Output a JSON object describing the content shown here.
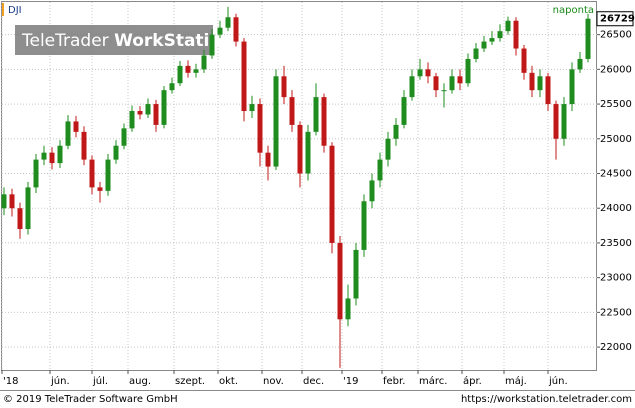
{
  "chart_data": {
    "type": "candlestick",
    "title": "DJI",
    "subtitle": "naponta",
    "watermark": [
      "TeleTrader",
      "WorkStation"
    ],
    "footer_left": "© 2019 TeleTrader Software GmbH",
    "footer_right": "https://workstation.teletrader.com",
    "up_color": "#1e8c1e",
    "down_color": "#c01818",
    "grid": true,
    "xlim": [
      0,
      297.5
    ],
    "ylim": [
      21670,
      26970
    ],
    "yticks": [
      22000,
      22500,
      23000,
      23500,
      24000,
      24500,
      25000,
      25500,
      26000,
      26500
    ],
    "xticks": [
      {
        "value": 0,
        "label": "'18"
      },
      {
        "value": 24,
        "label": "jún."
      },
      {
        "value": 45,
        "label": "júl."
      },
      {
        "value": 63,
        "label": "aug."
      },
      {
        "value": 86,
        "label": "szept."
      },
      {
        "value": 108,
        "label": "okt."
      },
      {
        "value": 130,
        "label": "nov."
      },
      {
        "value": 150,
        "label": "dec."
      },
      {
        "value": 170,
        "label": "'19"
      },
      {
        "value": 190,
        "label": "febr."
      },
      {
        "value": 208,
        "label": "márc."
      },
      {
        "value": 230,
        "label": "ápr."
      },
      {
        "value": 251,
        "label": "máj."
      },
      {
        "value": 273,
        "label": "jún."
      }
    ],
    "x": [
      1,
      5,
      9,
      13,
      17,
      21,
      25,
      29,
      33,
      37,
      41,
      45,
      49,
      53,
      57,
      61,
      65,
      69,
      73,
      77,
      81,
      85,
      89,
      93,
      97,
      101,
      105,
      109,
      113,
      117,
      121,
      125,
      129,
      133,
      137,
      141,
      145,
      149,
      153,
      157,
      161,
      165,
      169,
      173,
      177,
      181,
      185,
      189,
      193,
      197,
      201,
      205,
      209,
      213,
      217,
      221,
      225,
      229,
      233,
      237,
      241,
      245,
      249,
      253,
      257,
      261,
      265,
      269,
      273,
      277,
      281,
      285,
      289,
      293
    ],
    "open": [
      24000,
      24200,
      24000,
      23700,
      24300,
      24700,
      24800,
      24650,
      24900,
      25250,
      25100,
      24700,
      24300,
      24250,
      24700,
      24900,
      25150,
      25400,
      25350,
      25500,
      25200,
      25700,
      25800,
      26050,
      25950,
      26000,
      26200,
      26500,
      26600,
      26750,
      26400,
      25400,
      25500,
      24800,
      24600,
      25900,
      25600,
      25200,
      24500,
      25100,
      25600,
      24900,
      23500,
      22400,
      22700,
      23400,
      24100,
      24400,
      24700,
      25000,
      25200,
      25600,
      25900,
      26000,
      25900,
      25700,
      25700,
      25900,
      25800,
      26150,
      26300,
      26400,
      26450,
      26550,
      26700,
      26300,
      25950,
      25700,
      25900,
      25500,
      25000,
      25500,
      26000,
      26150
    ],
    "high": [
      24300,
      24280,
      24080,
      24380,
      24780,
      24900,
      24880,
      24980,
      25340,
      25330,
      25180,
      24760,
      24380,
      24780,
      24980,
      25220,
      25480,
      25470,
      25580,
      25560,
      25760,
      25880,
      26120,
      26130,
      26080,
      26280,
      26580,
      26700,
      26900,
      26800,
      26450,
      25620,
      25580,
      24900,
      26000,
      26050,
      25700,
      25250,
      25200,
      25800,
      25650,
      24950,
      23600,
      22900,
      23500,
      24200,
      24500,
      24800,
      25100,
      25300,
      25700,
      26000,
      26150,
      26100,
      25950,
      25800,
      26000,
      26000,
      26230,
      26380,
      26480,
      26550,
      26650,
      26760,
      26750,
      26350,
      26050,
      26000,
      25950,
      25550,
      25600,
      26100,
      26250,
      26800
    ],
    "low": [
      23900,
      23880,
      23560,
      23620,
      24220,
      24620,
      24560,
      24580,
      24850,
      25020,
      24620,
      24200,
      24080,
      24180,
      24640,
      24850,
      25100,
      25280,
      25300,
      25100,
      25150,
      25650,
      25760,
      25880,
      25880,
      25950,
      26150,
      26450,
      26550,
      26330,
      25250,
      25300,
      24600,
      24400,
      24550,
      25500,
      25100,
      24300,
      24400,
      25050,
      24800,
      23350,
      21700,
      22300,
      22600,
      23300,
      24000,
      24300,
      24600,
      24900,
      25150,
      25550,
      25850,
      25800,
      25600,
      25450,
      25650,
      25700,
      25750,
      26100,
      26250,
      26350,
      26400,
      26500,
      26200,
      25850,
      25600,
      25600,
      25400,
      24700,
      24900,
      25400,
      25950,
      26100
    ],
    "close": [
      24200,
      24000,
      23700,
      24300,
      24700,
      24800,
      24650,
      24900,
      25250,
      25100,
      24700,
      24300,
      24250,
      24700,
      24900,
      25150,
      25400,
      25350,
      25500,
      25200,
      25700,
      25800,
      26050,
      25950,
      26000,
      26200,
      26500,
      26600,
      26750,
      26400,
      25400,
      25500,
      24800,
      24600,
      25900,
      25600,
      25200,
      24500,
      25100,
      25600,
      24900,
      23500,
      22400,
      22700,
      23400,
      24100,
      24400,
      24700,
      25000,
      25200,
      25600,
      25900,
      26000,
      25900,
      25700,
      25700,
      25900,
      25800,
      26150,
      26300,
      26400,
      26450,
      26550,
      26700,
      26300,
      25950,
      25700,
      25900,
      25500,
      25000,
      25500,
      26000,
      26150,
      26729
    ]
  }
}
